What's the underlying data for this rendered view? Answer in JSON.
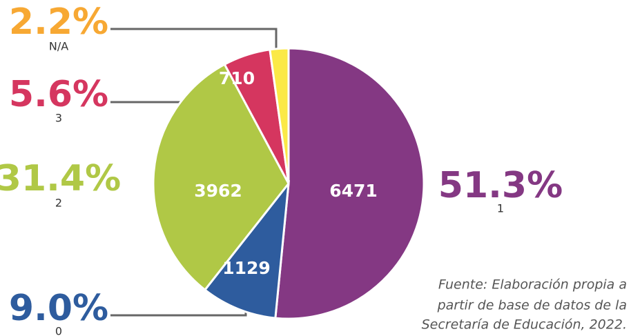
{
  "chart_data": {
    "type": "pie",
    "categories": [
      "1",
      "0",
      "2",
      "3",
      "N/A"
    ],
    "values": [
      51.3,
      9.0,
      31.4,
      5.6,
      2.2
    ],
    "value_labels": [
      "51.3%",
      "9.0%",
      "31.4%",
      "5.6%",
      "2.2%"
    ],
    "counts": [
      6471,
      1129,
      3962,
      710,
      null
    ],
    "colors": [
      "#843883",
      "#2e5c9e",
      "#b0c846",
      "#d5365f",
      "#fbe947"
    ],
    "label_colors": [
      "#843883",
      "#2e5c9e",
      "#b0c846",
      "#d5365f",
      "#f7a833"
    ],
    "source": [
      "Fuente: Elaboración propia a",
      "partir de base de datos de la",
      "Secretaría de Educación, 2022."
    ]
  }
}
